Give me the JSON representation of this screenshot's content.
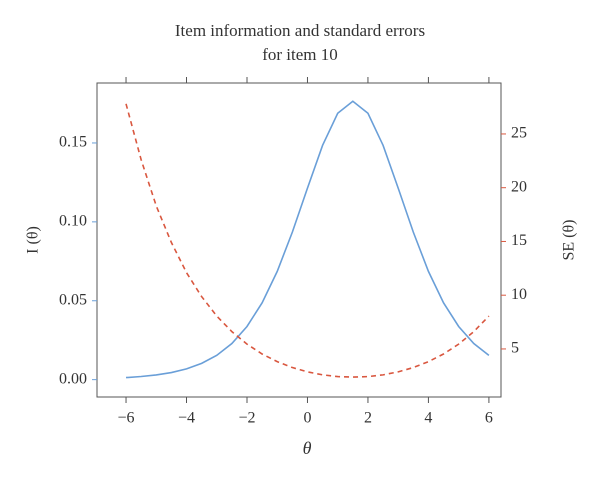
{
  "chart_data": {
    "type": "line",
    "title": [
      "Item information and standard errors",
      "for item 10"
    ],
    "x_label": "θ",
    "y_label": "I (θ)",
    "y2_label": "SE (θ)",
    "x": [
      -6,
      -5.5,
      -5,
      -4.5,
      -4,
      -3.5,
      -3,
      -2.5,
      -2,
      -1.5,
      -1,
      -0.5,
      0,
      0.5,
      1,
      1.5,
      2,
      2.5,
      3,
      3.5,
      4,
      4.5,
      5,
      5.5,
      6
    ],
    "series": [
      {
        "name": "I (θ)",
        "color": "#6a9fd8",
        "dash": false,
        "values": [
          0.0013,
          0.002,
          0.003,
          0.0045,
          0.0068,
          0.0103,
          0.0154,
          0.0229,
          0.0337,
          0.0487,
          0.0686,
          0.0935,
          0.1214,
          0.1485,
          0.1688,
          0.1764,
          0.1688,
          0.1485,
          0.1214,
          0.0935,
          0.0686,
          0.0487,
          0.0337,
          0.0229,
          0.0154
        ]
      },
      {
        "name": "SE (θ)",
        "color": "#d9573f",
        "dash": true,
        "axis": "y2",
        "values": [
          27.8,
          22.6,
          18.3,
          14.9,
          12.1,
          9.87,
          8.06,
          6.61,
          5.45,
          4.53,
          3.82,
          3.27,
          2.87,
          2.59,
          2.43,
          2.38,
          2.43,
          2.59,
          2.87,
          3.27,
          3.82,
          4.53,
          5.45,
          6.61,
          8.06
        ]
      }
    ],
    "xlim": [
      -6.96,
      6.4
    ],
    "xticks": [
      {
        "value": -6,
        "label": "−6"
      },
      {
        "value": -4,
        "label": "−4"
      },
      {
        "value": -2,
        "label": "−2"
      },
      0,
      2,
      4,
      6
    ],
    "ylim": [
      -0.011,
      0.188
    ],
    "yticks": [
      {
        "value": 0,
        "label": "0.00"
      },
      0.05,
      {
        "value": 0.1,
        "label": "0.10"
      },
      0.15
    ],
    "y2lim": [
      0.53,
      29.74
    ],
    "y2ticks": [
      5,
      10,
      15,
      20,
      25
    ]
  }
}
